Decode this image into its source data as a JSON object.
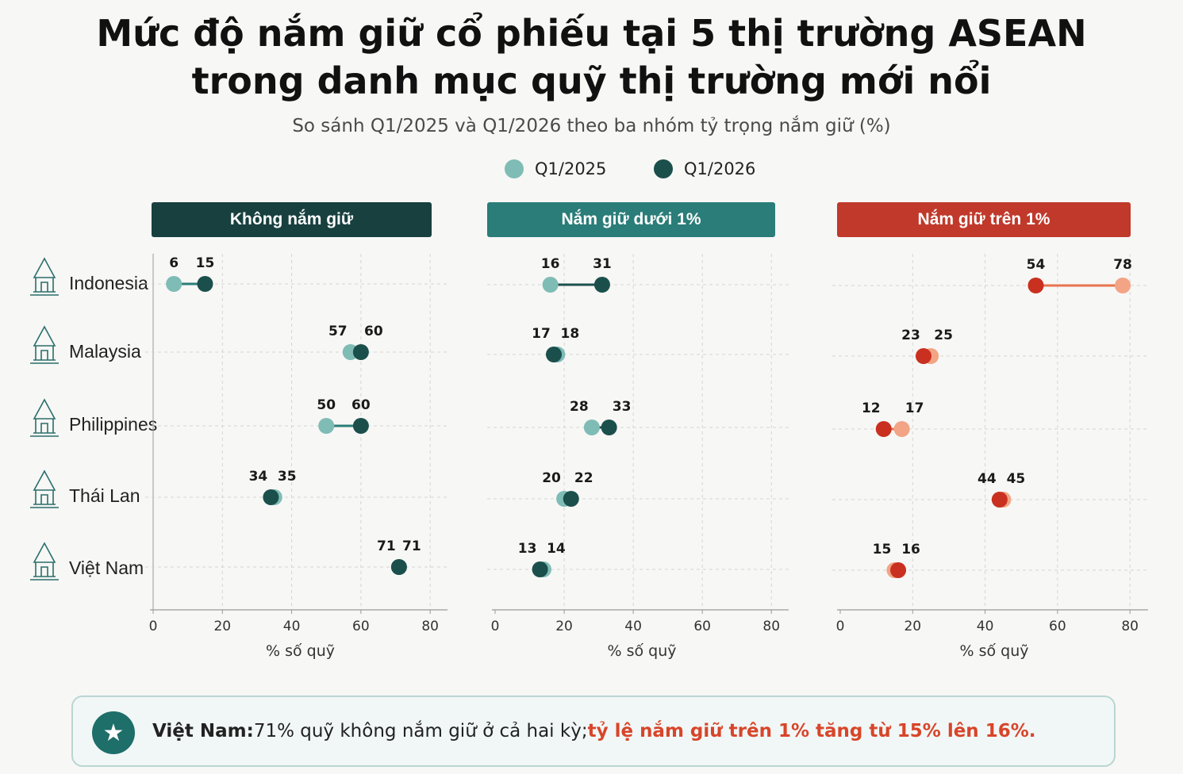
{
  "title": {
    "line1": "Mức độ nắm giữ cổ phiếu tại 5 thị trường ASEAN",
    "line2": "trong danh mục quỹ thị trường mới nổi"
  },
  "subtitle": "So sánh Q1/2025 và Q1/2026 theo ba nhóm tỷ trọng nắm giữ (%)",
  "legend": [
    {
      "label": "Q1/2025",
      "color": "#7fbcb5"
    },
    {
      "label": "Q1/2026",
      "color": "#1b4f4c"
    }
  ],
  "countries": [
    "Indonesia",
    "Malaysia",
    "Philippines",
    "Thái Lan",
    "Việt Nam"
  ],
  "panels": [
    {
      "title": "Không nắm giữ",
      "header_color": "#17403f",
      "xlabel": "% số quỹ"
    },
    {
      "title": "Nắm giữ dưới 1%",
      "header_color": "#2a7d78",
      "xlabel": "% số quỹ"
    },
    {
      "title": "Nắm giữ trên 1%",
      "header_color": "#c0392b",
      "xlabel": "% số quỹ"
    }
  ],
  "chart_data": {
    "type": "scatter",
    "subtype": "dumbbell",
    "xlim": [
      0,
      85
    ],
    "xticks": [
      0,
      20,
      40,
      60,
      80
    ],
    "grid": true,
    "series_names": [
      "Q1/2025",
      "Q1/2026"
    ],
    "panels": [
      {
        "title": "Không nắm giữ",
        "colors": {
          "Q1/2025": "#7fbcb5",
          "Q1/2026": "#1b4f4c",
          "line": "#2a7d78"
        },
        "rows": [
          {
            "country": "Indonesia",
            "q1_2025": 6,
            "q1_2026": 15
          },
          {
            "country": "Malaysia",
            "q1_2025": 57,
            "q1_2026": 60
          },
          {
            "country": "Philippines",
            "q1_2025": 50,
            "q1_2026": 60
          },
          {
            "country": "Thái Lan",
            "q1_2025": 35,
            "q1_2026": 34
          },
          {
            "country": "Việt Nam",
            "q1_2025": 71,
            "q1_2026": 71
          }
        ]
      },
      {
        "title": "Nắm giữ dưới 1%",
        "colors": {
          "Q1/2025": "#7fbcb5",
          "Q1/2026": "#1b4f4c",
          "line": "#1b4f4c"
        },
        "rows": [
          {
            "country": "Indonesia",
            "q1_2025": 16,
            "q1_2026": 31
          },
          {
            "country": "Malaysia",
            "q1_2025": 18,
            "q1_2026": 17
          },
          {
            "country": "Philippines",
            "q1_2025": 28,
            "q1_2026": 33
          },
          {
            "country": "Thái Lan",
            "q1_2025": 20,
            "q1_2026": 22
          },
          {
            "country": "Việt Nam",
            "q1_2025": 14,
            "q1_2026": 13
          }
        ]
      },
      {
        "title": "Nắm giữ trên 1%",
        "colors": {
          "Q1/2025": "#f2a485",
          "Q1/2026": "#c9301f",
          "line": "#e8734f"
        },
        "rows": [
          {
            "country": "Indonesia",
            "q1_2025": 78,
            "q1_2026": 54
          },
          {
            "country": "Malaysia",
            "q1_2025": 25,
            "q1_2026": 23
          },
          {
            "country": "Philippines",
            "q1_2025": 17,
            "q1_2026": 12
          },
          {
            "country": "Thái Lan",
            "q1_2025": 45,
            "q1_2026": 44
          },
          {
            "country": "Việt Nam",
            "q1_2025": 15,
            "q1_2026": 16
          }
        ]
      }
    ]
  },
  "callout": {
    "icon": "star-icon",
    "bold": "Việt Nam:",
    "text": " 71% quỹ không nắm giữ ở cả hai kỳ; ",
    "highlight": "tỷ lệ nắm giữ trên 1% tăng từ 15% lên 16%."
  }
}
